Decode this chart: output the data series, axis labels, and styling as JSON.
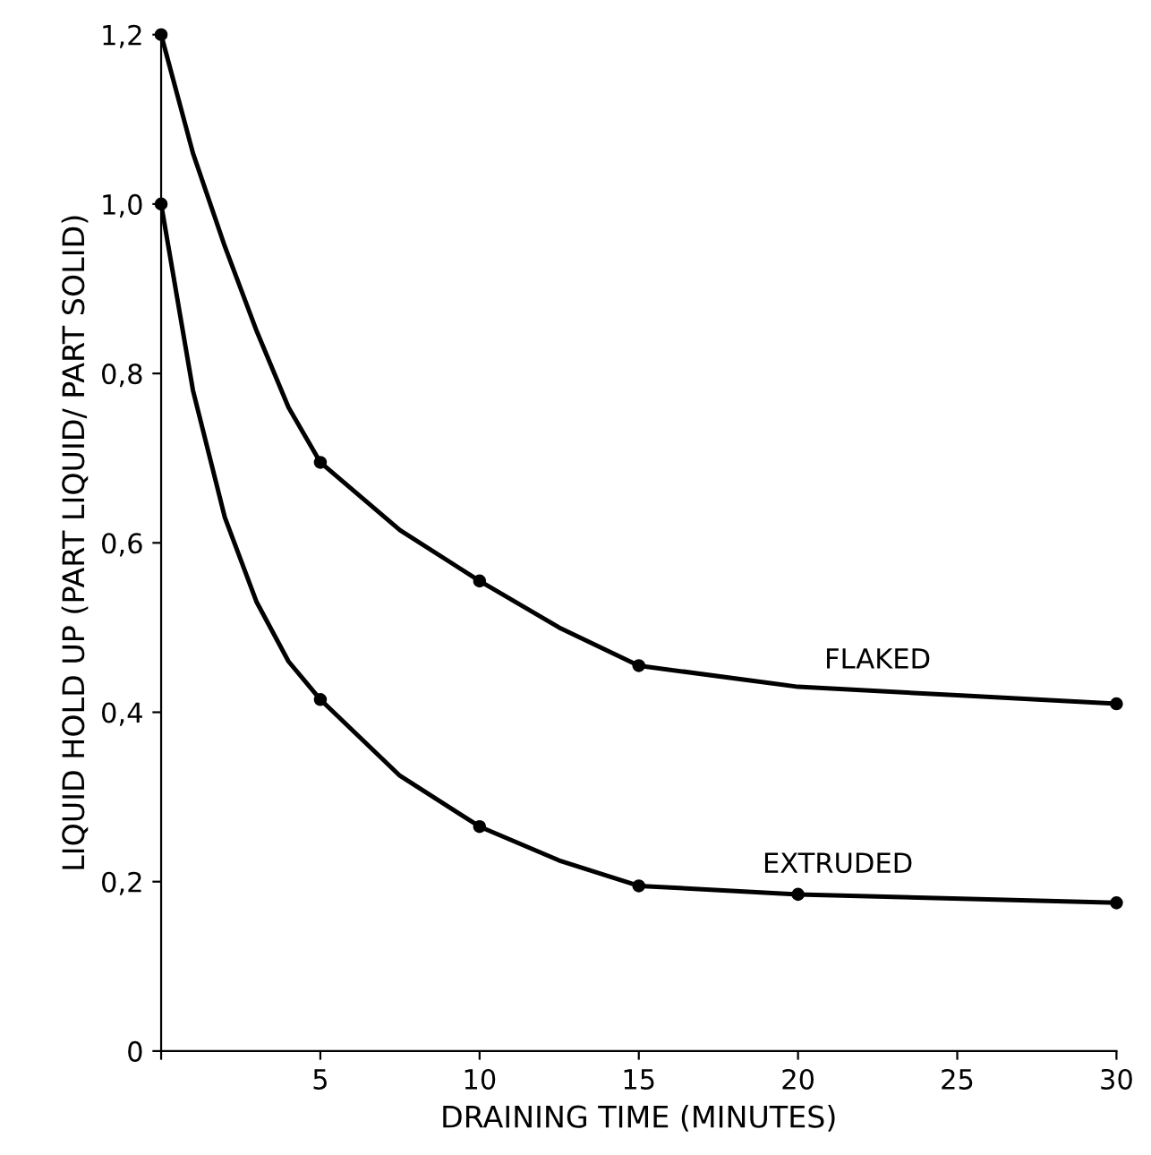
{
  "chart_data": {
    "type": "line",
    "xlabel": "DRAINING TIME (MINUTES)",
    "ylabel": "LIQUID HOLD UP (PART LIQUID/ PART SOLID)",
    "series": [
      {
        "name": "FLAKED",
        "color": "#000000",
        "marker": "none",
        "x": [
          0,
          1,
          2,
          3,
          4,
          5,
          7.5,
          10,
          12.5,
          15,
          20,
          25,
          30
        ],
        "values": [
          1.2,
          1.06,
          0.95,
          0.85,
          0.76,
          0.695,
          0.615,
          0.555,
          0.5,
          0.455,
          0.43,
          0.42,
          0.41
        ]
      },
      {
        "name": "EXTRUDED",
        "color": "#000000",
        "marker": "none",
        "x": [
          0,
          1,
          2,
          3,
          4,
          5,
          7.5,
          10,
          12.5,
          15,
          20,
          30
        ],
        "values": [
          1.0,
          0.78,
          0.63,
          0.53,
          0.46,
          0.415,
          0.325,
          0.265,
          0.225,
          0.195,
          0.185,
          0.175
        ]
      },
      {
        "type": "scatter",
        "color": "#000000",
        "x": [
          0,
          5,
          10,
          15,
          30
        ],
        "values": [
          1.2,
          0.695,
          0.555,
          0.455,
          0.41
        ]
      },
      {
        "type": "scatter",
        "color": "#000000",
        "x": [
          0,
          5,
          10,
          15,
          20,
          30
        ],
        "values": [
          1.0,
          0.415,
          0.265,
          0.195,
          0.185,
          0.175
        ]
      }
    ],
    "xlim": [
      0,
      30
    ],
    "xticks": [
      {
        "value": 0,
        "label": null
      },
      5,
      10,
      15,
      20,
      25,
      30
    ],
    "ylim": [
      0,
      1.2
    ],
    "yticks": [
      0,
      {
        "value": 0.2,
        "label": "0,2"
      },
      {
        "value": 0.4,
        "label": "0,4"
      },
      {
        "value": 0.6,
        "label": "0,6"
      },
      {
        "value": 0.8,
        "label": "0,8"
      },
      {
        "value": 1.0,
        "label": "1,0"
      },
      {
        "value": 1.2,
        "label": "1,2"
      }
    ],
    "marker": "circle",
    "line_style": "solid",
    "grid": false,
    "legend": false
  }
}
